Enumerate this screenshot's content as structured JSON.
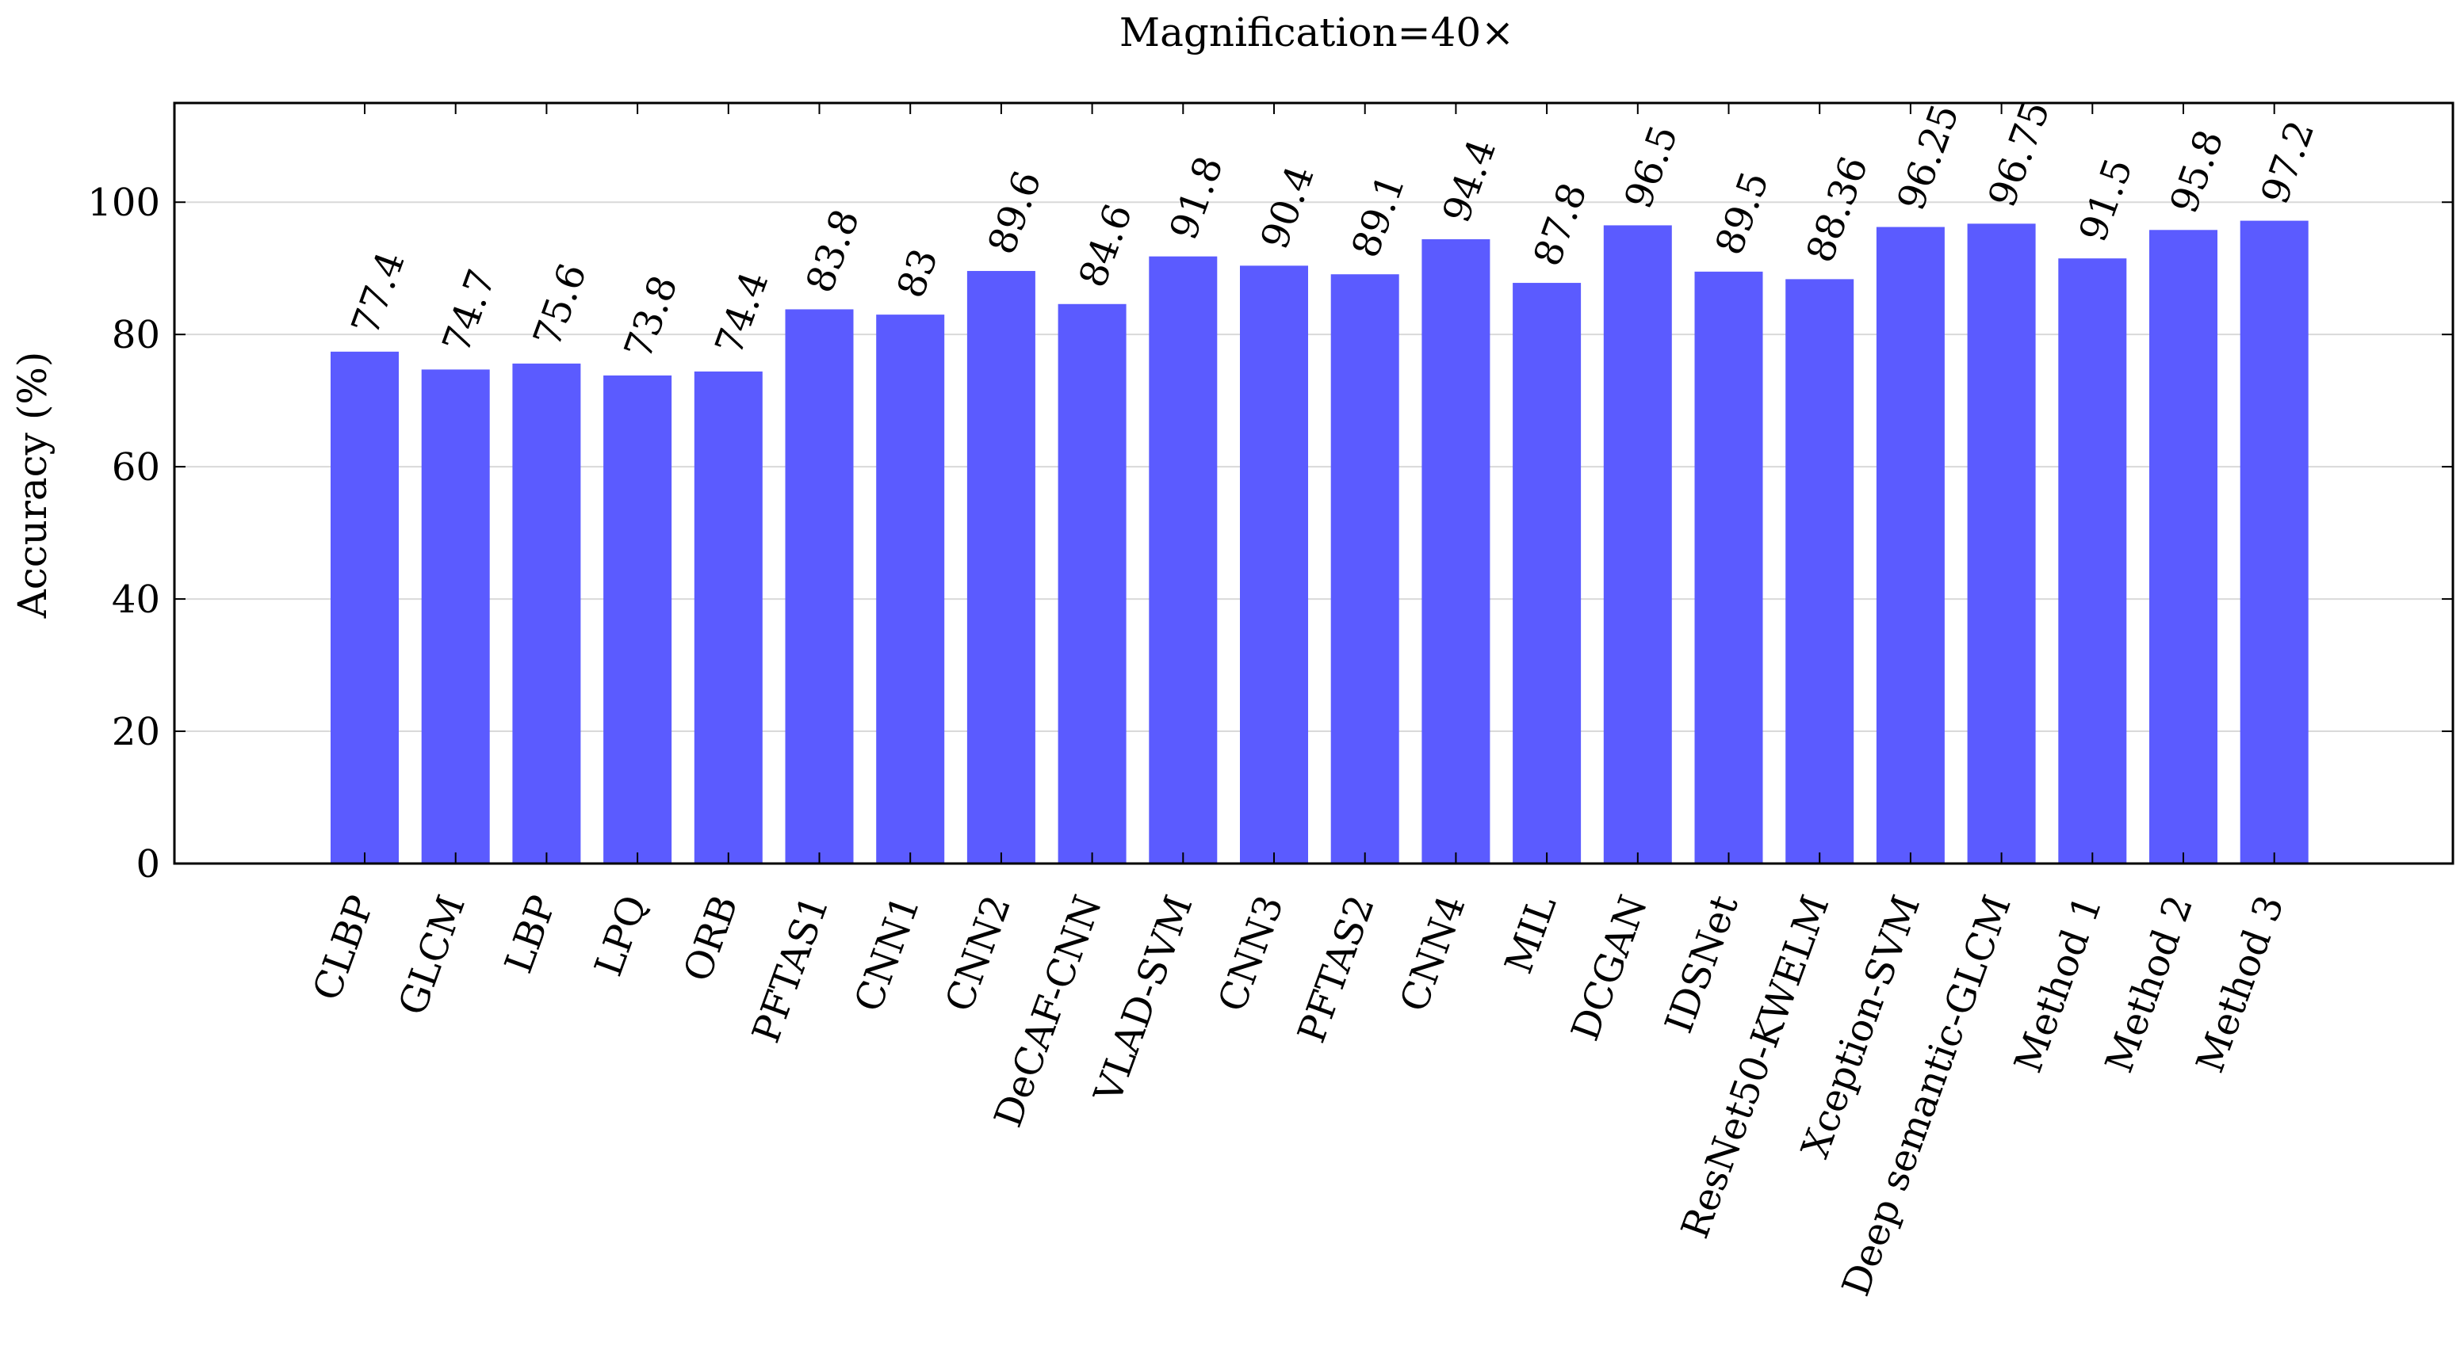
{
  "chart_data": {
    "type": "bar",
    "title": "Magnification=40×",
    "xlabel": "",
    "ylabel": "Accuracy (%)",
    "ylim": [
      0,
      115
    ],
    "yticks": [
      0,
      20,
      40,
      60,
      80,
      100
    ],
    "grid": true,
    "bar_color": "#5b5bff",
    "categories": [
      "CLBP",
      "GLCM",
      "LBP",
      "LPQ",
      "ORB",
      "PFTAS1",
      "CNN1",
      "CNN2",
      "DeCAF-CNN",
      "VLAD-SVM",
      "CNN3",
      "PFTAS2",
      "CNN4",
      "MIL",
      "DCGAN",
      "IDSNet",
      "ResNet50-KWELM",
      "Xception-SVM",
      "Deep semantic-GLCM",
      "Method 1",
      "Method 2",
      "Method 3"
    ],
    "values": [
      77.4,
      74.7,
      75.6,
      73.8,
      74.4,
      83.8,
      83,
      89.6,
      84.6,
      91.8,
      90.4,
      89.1,
      94.4,
      87.8,
      96.5,
      89.5,
      88.36,
      96.25,
      96.75,
      91.5,
      95.8,
      97.2
    ],
    "value_labels": [
      "77.4",
      "74.7",
      "75.6",
      "73.8",
      "74.4",
      "83.8",
      "83",
      "89.6",
      "84.6",
      "91.8",
      "90.4",
      "89.1",
      "94.4",
      "87.8",
      "96.5",
      "89.5",
      "88.36",
      "96.25",
      "96.75",
      "91.5",
      "95.8",
      "97.2"
    ]
  }
}
